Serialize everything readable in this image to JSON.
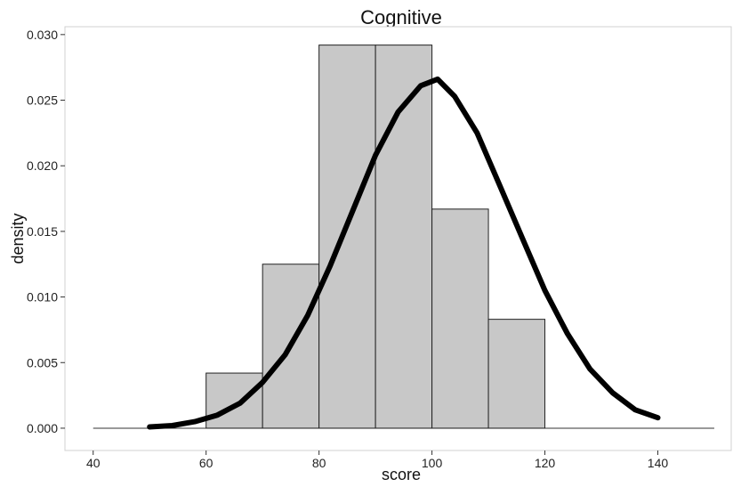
{
  "chart_data": {
    "type": "bar",
    "title": "Cognitive",
    "xlabel": "score",
    "ylabel": "density",
    "xlim": [
      35,
      153
    ],
    "ylim": [
      -0.0017,
      0.0306
    ],
    "xticks": [
      40,
      60,
      80,
      100,
      120,
      140
    ],
    "yticks": [
      0.0,
      0.005,
      0.01,
      0.015,
      0.02,
      0.025,
      0.03
    ],
    "ytick_labels": [
      "0.000",
      "0.005",
      "0.010",
      "0.015",
      "0.020",
      "0.025",
      "0.030"
    ],
    "grid": false,
    "baseline": {
      "x_from": 40,
      "x_to": 150
    },
    "histogram": {
      "bins": [
        {
          "x0": 60,
          "x1": 70,
          "density": 0.0042
        },
        {
          "x0": 70,
          "x1": 80,
          "density": 0.0125
        },
        {
          "x0": 80,
          "x1": 90,
          "density": 0.0292
        },
        {
          "x0": 90,
          "x1": 100,
          "density": 0.0292
        },
        {
          "x0": 100,
          "x1": 110,
          "density": 0.0167
        },
        {
          "x0": 110,
          "x1": 120,
          "density": 0.0083
        }
      ],
      "fill": "#c8c8c8",
      "stroke": "#222222"
    },
    "density_curve": {
      "color": "#000000",
      "x": [
        50,
        54,
        58,
        62,
        66,
        70,
        74,
        78,
        82,
        86,
        90,
        94,
        98,
        101,
        104,
        108,
        112,
        116,
        120,
        124,
        128,
        132,
        136,
        140
      ],
      "y": [
        0.0001,
        0.0002,
        0.0005,
        0.001,
        0.0019,
        0.0035,
        0.0056,
        0.0086,
        0.0124,
        0.0166,
        0.0208,
        0.0241,
        0.0261,
        0.0266,
        0.0253,
        0.0225,
        0.0185,
        0.0145,
        0.0105,
        0.0072,
        0.0045,
        0.0027,
        0.0014,
        0.0008
      ]
    }
  }
}
